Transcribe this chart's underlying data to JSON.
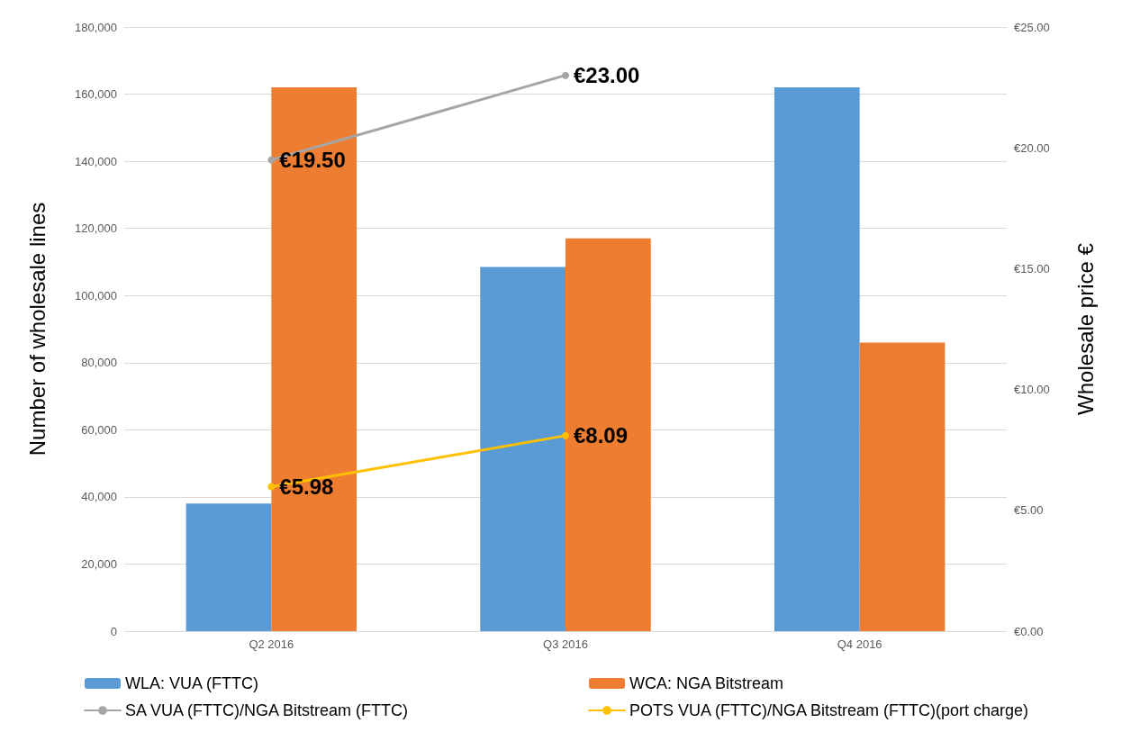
{
  "chart_data": {
    "type": "bar",
    "ylabel": "Number of wholesale lines",
    "y2label": "Wholesale price €",
    "categories": [
      "Q2 2016",
      "Q3 2016",
      "Q4 2016"
    ],
    "series": [
      {
        "name": "WLA: VUA (FTTC)",
        "color": "#5b9bd5",
        "values": [
          38000,
          108500,
          162000
        ]
      },
      {
        "name": "WCA: NGA Bitstream",
        "color": "#ed7d31",
        "values": [
          162000,
          117000,
          86000
        ]
      },
      {
        "name": "SA VUA (FTTC)/NGA Bitstream (FTTC)",
        "type": "line",
        "axis": "y2",
        "color": "#a5a5a5",
        "values": [
          19.5,
          23,
          null
        ],
        "value_labels": [
          "€19.50",
          "€23.00",
          null
        ]
      },
      {
        "name": "POTS VUA (FTTC)/NGA Bitstream (FTTC)(port charge)",
        "type": "line",
        "axis": "y2",
        "color": "#ffc000",
        "values": [
          5.98,
          8.09,
          null
        ],
        "value_labels": [
          "€5.98",
          "€8.09",
          null
        ]
      }
    ],
    "ylim": [
      0,
      180000
    ],
    "yticks": [
      {
        "value": 0,
        "label": "0"
      },
      {
        "value": 20000,
        "label": "20,000"
      },
      {
        "value": 40000,
        "label": "40,000"
      },
      {
        "value": 60000,
        "label": "60,000"
      },
      {
        "value": 80000,
        "label": "80,000"
      },
      {
        "value": 100000,
        "label": "100,000"
      },
      {
        "value": 120000,
        "label": "120,000"
      },
      {
        "value": 140000,
        "label": "140,000"
      },
      {
        "value": 160000,
        "label": "160,000"
      },
      {
        "value": 180000,
        "label": "180,000"
      }
    ],
    "y2lim": [
      0,
      25
    ],
    "y2ticks": [
      {
        "value": 0,
        "label": "€0.00"
      },
      {
        "value": 5,
        "label": "€5.00"
      },
      {
        "value": 10,
        "label": "€10.00"
      },
      {
        "value": 15,
        "label": "€15.00"
      },
      {
        "value": 20,
        "label": "€20.00"
      },
      {
        "value": 25,
        "label": "€25.00"
      }
    ],
    "grid": "y",
    "legend": "bottom",
    "marker": "circle",
    "line_style": "solid"
  }
}
